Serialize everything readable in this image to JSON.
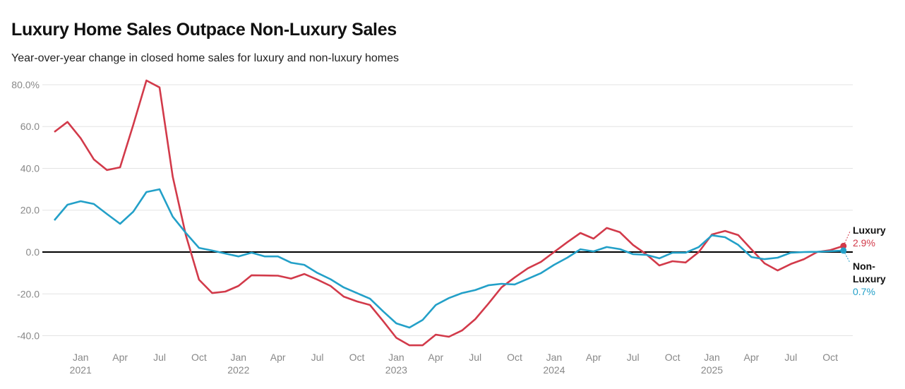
{
  "chart_data": {
    "type": "line",
    "title": "Luxury Home Sales Outpace Non-Luxury Sales",
    "subtitle": "Year-over-year change in closed home sales for luxury and non-luxury homes",
    "x_start": "2020-11",
    "x_end": "2025-11",
    "x_ticks": [
      {
        "month": "2021-01",
        "label": "Jan",
        "year": "2021"
      },
      {
        "month": "2021-04",
        "label": "Apr"
      },
      {
        "month": "2021-07",
        "label": "Jul"
      },
      {
        "month": "2021-10",
        "label": "Oct"
      },
      {
        "month": "2022-01",
        "label": "Jan",
        "year": "2022"
      },
      {
        "month": "2022-04",
        "label": "Apr"
      },
      {
        "month": "2022-07",
        "label": "Jul"
      },
      {
        "month": "2022-10",
        "label": "Oct"
      },
      {
        "month": "2023-01",
        "label": "Jan",
        "year": "2023"
      },
      {
        "month": "2023-04",
        "label": "Apr"
      },
      {
        "month": "2023-07",
        "label": "Jul"
      },
      {
        "month": "2023-10",
        "label": "Oct"
      },
      {
        "month": "2024-01",
        "label": "Jan",
        "year": "2024"
      },
      {
        "month": "2024-04",
        "label": "Apr"
      },
      {
        "month": "2024-07",
        "label": "Jul"
      },
      {
        "month": "2024-10",
        "label": "Oct"
      },
      {
        "month": "2025-01",
        "label": "Jan",
        "year": "2025"
      },
      {
        "month": "2025-04",
        "label": "Apr"
      },
      {
        "month": "2025-07",
        "label": "Jul"
      },
      {
        "month": "2025-10",
        "label": "Oct"
      }
    ],
    "y_ticks": [
      {
        "v": 80,
        "label": "80.0%"
      },
      {
        "v": 60,
        "label": "60.0"
      },
      {
        "v": 40,
        "label": "40.0"
      },
      {
        "v": 20,
        "label": "20.0"
      },
      {
        "v": 0,
        "label": "0.0"
      },
      {
        "v": -20,
        "label": "-20.0"
      },
      {
        "v": -40,
        "label": "-40.0"
      }
    ],
    "ylim": [
      -44,
      82
    ],
    "grid": true,
    "series": [
      {
        "name": "Luxury",
        "color": "#d23a4a",
        "end_label": "2.9%",
        "values": [
          57.4,
          62.2,
          54.4,
          44.3,
          39.2,
          40.5,
          60.8,
          82,
          78.7,
          36,
          8,
          -13.2,
          -19.6,
          -18.9,
          -16.2,
          -11.1,
          -11.2,
          -11.3,
          -12.7,
          -10.5,
          -13.2,
          -16.2,
          -21.3,
          -23.6,
          -25.3,
          -33,
          -41,
          -44.6,
          -44.6,
          -39.5,
          -40.5,
          -37.5,
          -32.1,
          -24.7,
          -16.9,
          -12.2,
          -7.8,
          -4.7,
          0,
          4.7,
          9.1,
          6.4,
          11.5,
          9.5,
          3.4,
          -1,
          -6.4,
          -4.4,
          -5,
          0,
          8.4,
          10.1,
          8.1,
          1.3,
          -5.4,
          -8.8,
          -5.7,
          -3.4,
          0,
          0.9,
          2.9
        ]
      },
      {
        "name": "Non-Luxury",
        "name_lines": [
          "Non-",
          "Luxury"
        ],
        "color": "#23a0c8",
        "end_label": "0.7%",
        "values": [
          15.2,
          22.6,
          24.3,
          23,
          18.2,
          13.5,
          19.3,
          28.7,
          30,
          16.9,
          9.1,
          2,
          0.7,
          -0.7,
          -2.1,
          -0.3,
          -2.1,
          -2.1,
          -5.1,
          -6.1,
          -10,
          -13,
          -16.9,
          -19.6,
          -22.3,
          -28.4,
          -34.1,
          -36.1,
          -32.5,
          -25.3,
          -22,
          -19.6,
          -18.2,
          -15.9,
          -15.2,
          -15.5,
          -12.8,
          -10.1,
          -6.1,
          -2.7,
          1.3,
          0.3,
          2.4,
          1.4,
          -1,
          -1.3,
          -3,
          -0.3,
          -0.3,
          2.4,
          8,
          7.1,
          3.4,
          -2.4,
          -3.4,
          -2.7,
          -0.3,
          0,
          0.1,
          0.4,
          0.7
        ]
      }
    ]
  }
}
